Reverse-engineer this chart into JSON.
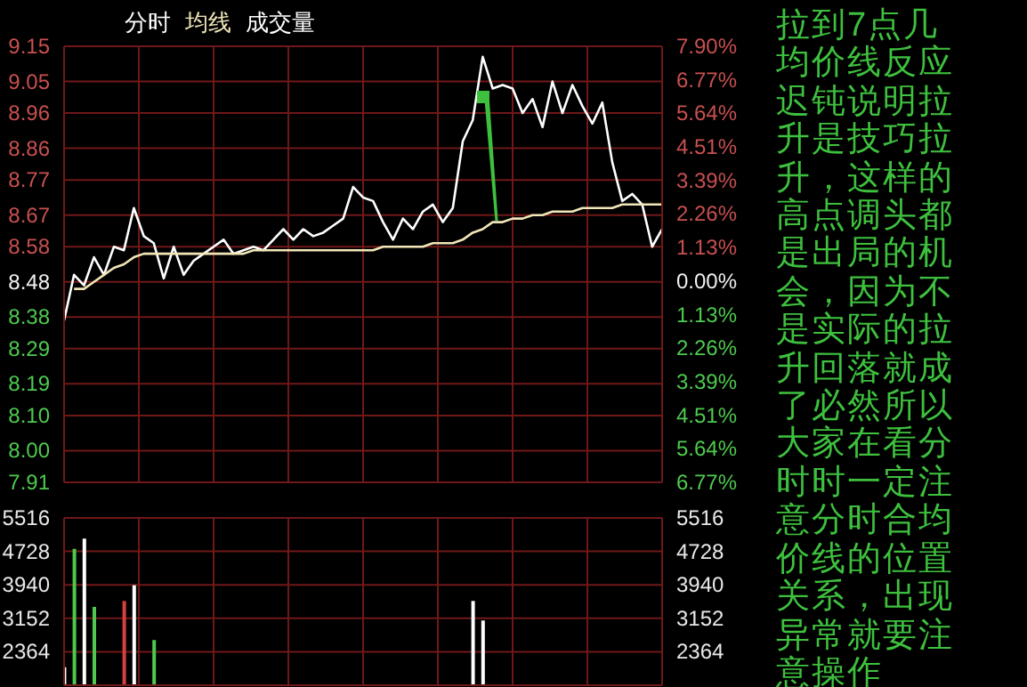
{
  "chart_data": [
    {
      "type": "line",
      "grid": true,
      "marker": "none",
      "line_style": "solid",
      "tick_labels": "y",
      "categories": [
        null,
        null,
        null,
        null,
        null,
        null,
        null,
        null,
        null,
        null,
        null,
        null,
        null,
        null,
        null,
        null,
        null,
        null,
        null,
        null,
        null,
        null,
        null,
        null,
        null,
        null,
        null,
        null,
        null,
        null,
        null,
        null,
        null,
        null,
        null,
        null,
        null,
        null,
        null,
        null,
        null,
        null,
        null,
        null,
        null,
        null,
        null,
        null,
        null,
        null,
        null,
        null,
        null,
        null,
        null,
        null,
        null,
        null,
        null,
        null,
        null
      ],
      "ylim": [
        7.91,
        9.15
      ],
      "yticks": [
        9.15,
        9.05,
        8.96,
        8.86,
        8.77,
        8.67,
        8.58,
        8.48,
        8.38,
        8.29,
        8.19,
        {
          "value": 8.1,
          "label": "8.10"
        },
        {
          "value": 8.0,
          "label": "8.00"
        },
        7.91
      ],
      "y2lim": [
        -6.77,
        7.9
      ],
      "y2ticks": [
        {
          "value": 7.9,
          "label": "7.90%"
        },
        {
          "value": 6.77,
          "label": "6.77%"
        },
        {
          "value": 5.64,
          "label": "5.64%"
        },
        {
          "value": 4.51,
          "label": "4.51%"
        },
        {
          "value": 3.39,
          "label": "3.39%"
        },
        {
          "value": 2.26,
          "label": "2.26%"
        },
        {
          "value": 1.13,
          "label": "1.13%"
        },
        {
          "value": 0,
          "label": "0.00%"
        },
        {
          "value": -1.13,
          "label": "1.13%"
        },
        {
          "value": -2.26,
          "label": "2.26%"
        },
        {
          "value": -3.39,
          "label": "3.39%"
        },
        {
          "value": -4.51,
          "label": "4.51%"
        },
        {
          "value": -5.64,
          "label": "5.64%"
        },
        {
          "value": -6.77,
          "label": "6.77%"
        }
      ],
      "annotations": [
        "拉到7点几均价线反应迟钝说明拉升是技巧拉升，这样的高点调头都是出局的机会，因为不是实际的拉升回落就成了必然所以大家在看分时时一定注意分时合均价线的位置关系，出现异常就要注意操作"
      ],
      "series": [
        {
          "name": "分时",
          "color": "#ffffff",
          "values": [
            8.37,
            8.5,
            8.47,
            8.55,
            8.5,
            8.58,
            8.57,
            8.69,
            8.61,
            8.59,
            8.49,
            8.58,
            8.5,
            8.54,
            8.56,
            8.58,
            8.6,
            8.56,
            8.57,
            8.58,
            8.57,
            8.6,
            8.63,
            8.6,
            8.63,
            8.61,
            8.62,
            8.64,
            8.66,
            8.75,
            8.72,
            8.71,
            8.65,
            8.6,
            8.66,
            8.63,
            8.68,
            8.7,
            8.65,
            8.69,
            8.88,
            8.94,
            9.12,
            9.03,
            9.04,
            9.03,
            8.96,
            9.0,
            8.92,
            9.05,
            8.96,
            9.04,
            8.98,
            8.93,
            8.99,
            8.82,
            8.71,
            8.73,
            8.7,
            8.58,
            8.63
          ]
        },
        {
          "name": "均线",
          "color": "#f0e6b8",
          "values": [
            null,
            8.46,
            8.46,
            8.48,
            8.5,
            8.52,
            8.53,
            8.55,
            8.56,
            8.56,
            8.56,
            8.56,
            8.56,
            8.56,
            8.56,
            8.56,
            8.56,
            8.56,
            8.56,
            8.57,
            8.57,
            8.57,
            8.57,
            8.57,
            8.57,
            8.57,
            8.57,
            8.57,
            8.57,
            8.57,
            8.57,
            8.57,
            8.58,
            8.58,
            8.58,
            8.58,
            8.58,
            8.59,
            8.59,
            8.59,
            8.6,
            8.62,
            8.63,
            8.65,
            8.65,
            8.66,
            8.66,
            8.67,
            8.67,
            8.68,
            8.68,
            8.68,
            8.69,
            8.69,
            8.69,
            8.69,
            8.7,
            8.7,
            8.7,
            8.7,
            8.7
          ]
        }
      ]
    },
    {
      "type": "bar",
      "grid": true,
      "tick_labels": "y",
      "categories": [
        null,
        null,
        null,
        null,
        null,
        null,
        null,
        null,
        null,
        null,
        null,
        null,
        null,
        null,
        null,
        null,
        null,
        null,
        null,
        null,
        null,
        null,
        null,
        null,
        null,
        null,
        null,
        null,
        null,
        null,
        null,
        null,
        null,
        null,
        null,
        null,
        null,
        null,
        null,
        null,
        null,
        null,
        null,
        null,
        null,
        null,
        null,
        null,
        null,
        null,
        null,
        null,
        null,
        null,
        null,
        null,
        null,
        null,
        null,
        null,
        null
      ],
      "ylim": [
        1576,
        5516
      ],
      "yticks": [
        5516,
        4728,
        3940,
        3152,
        2364
      ],
      "y2lim": [
        1576,
        5516
      ],
      "y2ticks": [
        5516,
        4728,
        3940,
        3152,
        2364
      ],
      "series": [
        {
          "name": "成交量",
          "color": "#ffffff",
          "values": [
            2000,
            4790,
            5030,
            3420,
            null,
            null,
            3560,
            3930,
            null,
            2640,
            null,
            null,
            null,
            null,
            null,
            null,
            null,
            null,
            null,
            null,
            null,
            null,
            null,
            null,
            null,
            null,
            null,
            null,
            null,
            null,
            null,
            null,
            null,
            null,
            null,
            null,
            null,
            null,
            null,
            null,
            null,
            3560,
            3100,
            null,
            null,
            null,
            null,
            null,
            null,
            null,
            null,
            null,
            null,
            null,
            null,
            null,
            null,
            null,
            null,
            null,
            null
          ],
          "colors": [
            "#ffffff",
            "#4ec94e",
            "#ffffff",
            "#4ec94e",
            null,
            null,
            "#d84040",
            "#ffffff",
            null,
            "#4ec94e",
            null,
            null,
            null,
            null,
            null,
            null,
            null,
            null,
            null,
            null,
            null,
            null,
            null,
            null,
            null,
            null,
            null,
            null,
            null,
            null,
            null,
            null,
            null,
            null,
            null,
            null,
            null,
            null,
            null,
            null,
            null,
            "#ffffff",
            "#ffffff",
            null,
            null,
            null,
            null,
            null,
            null,
            null,
            null,
            null,
            null,
            null,
            null,
            null,
            null,
            null,
            null,
            null,
            null
          ]
        }
      ]
    }
  ]
}
